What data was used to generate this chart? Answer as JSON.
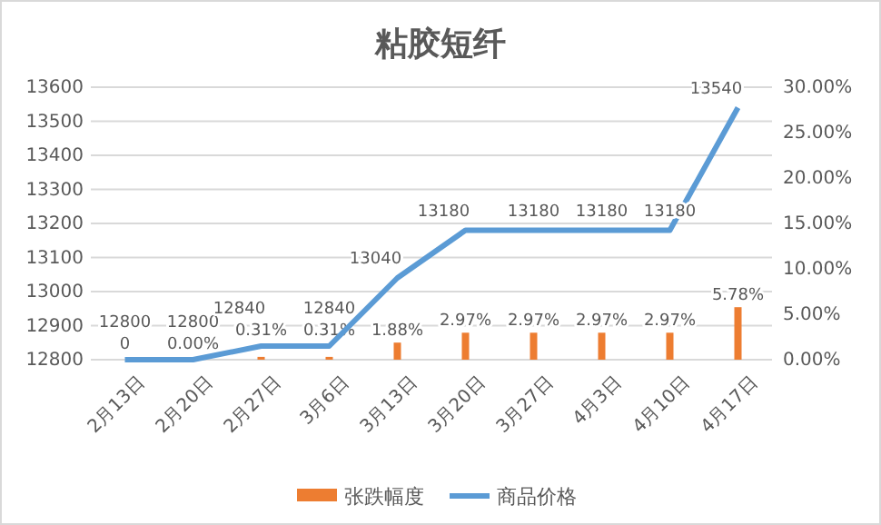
{
  "chart_data": {
    "type": "bar",
    "title": "粘胶短纤",
    "categories": [
      "2月13日",
      "2月20日",
      "2月27日",
      "3月6日",
      "3月13日",
      "3月20日",
      "3月27日",
      "4月3日",
      "4月10日",
      "4月17日"
    ],
    "series": [
      {
        "name": "张跌幅度",
        "axis": "y2",
        "color": "#ed7d31",
        "values": [
          0,
          0,
          0.31,
          0.31,
          1.88,
          2.97,
          2.97,
          2.97,
          2.97,
          5.78
        ],
        "value_labels": [
          "0",
          "0.00%",
          "0.31%",
          "0.31%",
          "1.88%",
          "2.97%",
          "2.97%",
          "2.97%",
          "2.97%",
          "5.78%"
        ]
      },
      {
        "name": "商品价格",
        "type": "line",
        "color": "#5b9bd5",
        "values": [
          12800,
          12800,
          12840,
          12840,
          13040,
          13180,
          13180,
          13180,
          13180,
          13540
        ],
        "value_labels": [
          "12800",
          "12800",
          "12840",
          "12840",
          "13040",
          "13180",
          "13180",
          "13180",
          "13180",
          "13540"
        ]
      }
    ],
    "ylim": [
      12800,
      13600
    ],
    "yticks": [
      12800,
      12900,
      13000,
      13100,
      13200,
      13300,
      13400,
      13500,
      13600
    ],
    "y2lim": [
      0,
      30
    ],
    "y2ticks": [
      {
        "value": 0,
        "label": "0.00%"
      },
      {
        "value": 5,
        "label": "5.00%"
      },
      {
        "value": 10,
        "label": "10.00%"
      },
      {
        "value": 15,
        "label": "15.00%"
      },
      {
        "value": 20,
        "label": "20.00%"
      },
      {
        "value": 25,
        "label": "25.00%"
      },
      {
        "value": 30,
        "label": "30.00%"
      }
    ],
    "grid": "y",
    "legend": "bottom"
  }
}
